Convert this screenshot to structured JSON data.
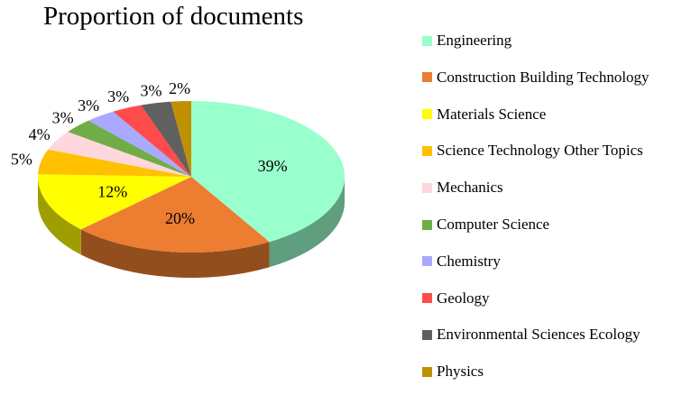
{
  "chart_data": {
    "type": "pie",
    "title": "Proportion of documents",
    "categories": [
      "Engineering",
      "Construction Building Technology",
      "Materials Science",
      "Science Technology Other Topics",
      "Mechanics",
      "Computer Science",
      "Chemistry",
      "Geology",
      "Environmental Sciences Ecology",
      "Physics"
    ],
    "values": [
      39,
      20,
      12,
      5,
      4,
      3,
      3,
      3,
      3,
      2
    ],
    "value_labels": [
      "39%",
      "20%",
      "12%",
      "5%",
      "4%",
      "3%",
      "3%",
      "3%",
      "3%",
      "2%"
    ],
    "colors": [
      "#99FFCC",
      "#ED7D31",
      "#FFFF00",
      "#FFC000",
      "#FFD7DC",
      "#70AD47",
      "#A9A9FF",
      "#FF4B4B",
      "#606060",
      "#BF9000"
    ],
    "style": "3d-pie",
    "legend_position": "right"
  }
}
